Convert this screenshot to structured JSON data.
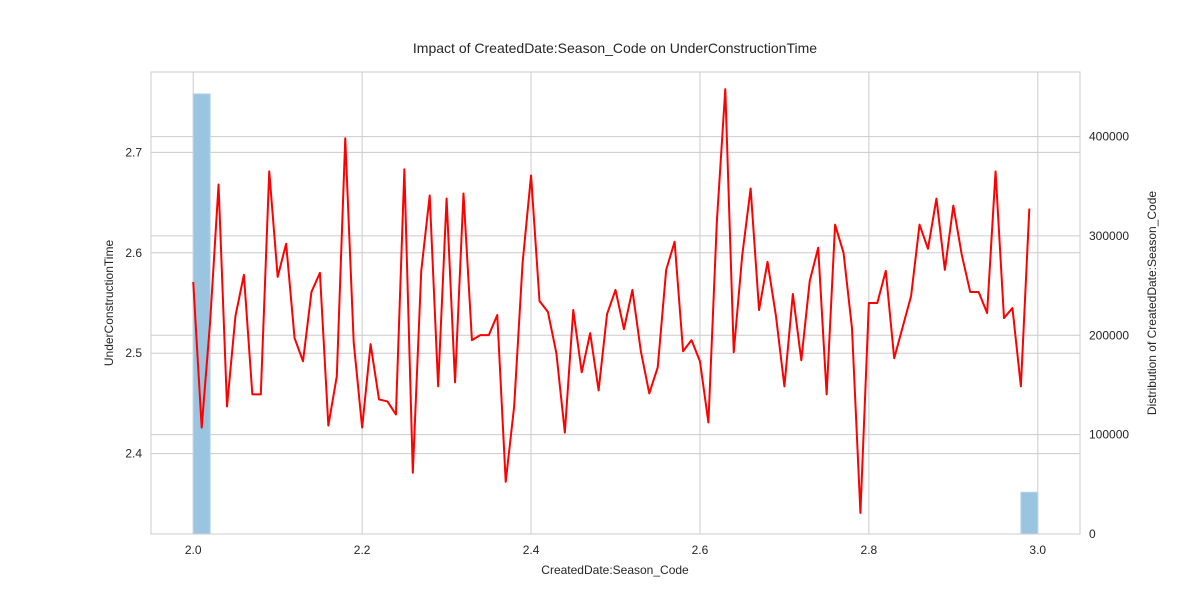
{
  "chart_data": {
    "type": "line",
    "title": "Impact of CreatedDate:Season_Code on UnderConstructionTime",
    "xlabel": "CreatedDate:Season_Code",
    "ylabel": "UnderConstructionTime",
    "y2label": "Distribution of CreatedDate:Season_Code",
    "xlim": [
      1.95,
      3.05
    ],
    "ylim": [
      2.32,
      2.78
    ],
    "y2lim": [
      0,
      465000
    ],
    "x_ticks": [
      "2.0",
      "2.2",
      "2.4",
      "2.6",
      "2.8",
      "3.0"
    ],
    "y_ticks": [
      "2.4",
      "2.5",
      "2.6",
      "2.7"
    ],
    "y2_ticks": [
      "0",
      "100000",
      "200000",
      "300000",
      "400000"
    ],
    "grid": true,
    "series": [
      {
        "color": "#ff0000",
        "x": [
          2.0,
          2.01,
          2.02,
          2.03,
          2.04,
          2.05,
          2.06,
          2.07,
          2.08,
          2.09,
          2.1,
          2.11,
          2.12,
          2.13,
          2.14,
          2.15,
          2.16,
          2.17,
          2.18,
          2.19,
          2.2,
          2.21,
          2.22,
          2.23,
          2.24,
          2.25,
          2.26,
          2.27,
          2.28,
          2.29,
          2.3,
          2.31,
          2.32,
          2.33,
          2.34,
          2.35,
          2.36,
          2.37,
          2.38,
          2.39,
          2.4,
          2.41,
          2.42,
          2.43,
          2.44,
          2.45,
          2.46,
          2.47,
          2.48,
          2.49,
          2.5,
          2.51,
          2.52,
          2.53,
          2.54,
          2.55,
          2.56,
          2.57,
          2.58,
          2.59,
          2.6,
          2.61,
          2.62,
          2.63,
          2.64,
          2.65,
          2.66,
          2.67,
          2.68,
          2.69,
          2.7,
          2.71,
          2.72,
          2.73,
          2.74,
          2.75,
          2.76,
          2.77,
          2.78,
          2.79,
          2.8,
          2.81,
          2.82,
          2.83,
          2.84,
          2.85,
          2.86,
          2.87,
          2.88,
          2.89,
          2.9,
          2.91,
          2.92,
          2.93,
          2.94,
          2.95,
          2.96,
          2.97,
          2.98,
          2.99
        ],
        "y": [
          2.571,
          2.426,
          2.531,
          2.668,
          2.447,
          2.537,
          2.578,
          2.459,
          2.459,
          2.681,
          2.576,
          2.609,
          2.515,
          2.492,
          2.561,
          2.58,
          2.428,
          2.477,
          2.714,
          2.511,
          2.426,
          2.509,
          2.454,
          2.452,
          2.439,
          2.683,
          2.381,
          2.582,
          2.657,
          2.467,
          2.654,
          2.471,
          2.659,
          2.513,
          2.518,
          2.518,
          2.538,
          2.372,
          2.447,
          2.59,
          2.677,
          2.552,
          2.541,
          2.5,
          2.421,
          2.543,
          2.481,
          2.52,
          2.463,
          2.539,
          2.563,
          2.524,
          2.563,
          2.502,
          2.46,
          2.486,
          2.583,
          2.611,
          2.502,
          2.513,
          2.492,
          2.431,
          2.631,
          2.763,
          2.501,
          2.597,
          2.664,
          2.543,
          2.591,
          2.537,
          2.467,
          2.559,
          2.493,
          2.572,
          2.605,
          2.459,
          2.628,
          2.6,
          2.525,
          2.341,
          2.55,
          2.55,
          2.582,
          2.495,
          2.526,
          2.557,
          2.628,
          2.604,
          2.654,
          2.583,
          2.647,
          2.598,
          2.561,
          2.561,
          2.54,
          2.681,
          2.535,
          2.545,
          2.467,
          2.644
        ]
      }
    ],
    "histogram": {
      "color": "#9ac4e0",
      "bins": [
        {
          "x0": 2.0,
          "x1": 2.02,
          "count": 443000
        },
        {
          "x0": 2.98,
          "x1": 3.0,
          "count": 42000
        }
      ]
    }
  }
}
